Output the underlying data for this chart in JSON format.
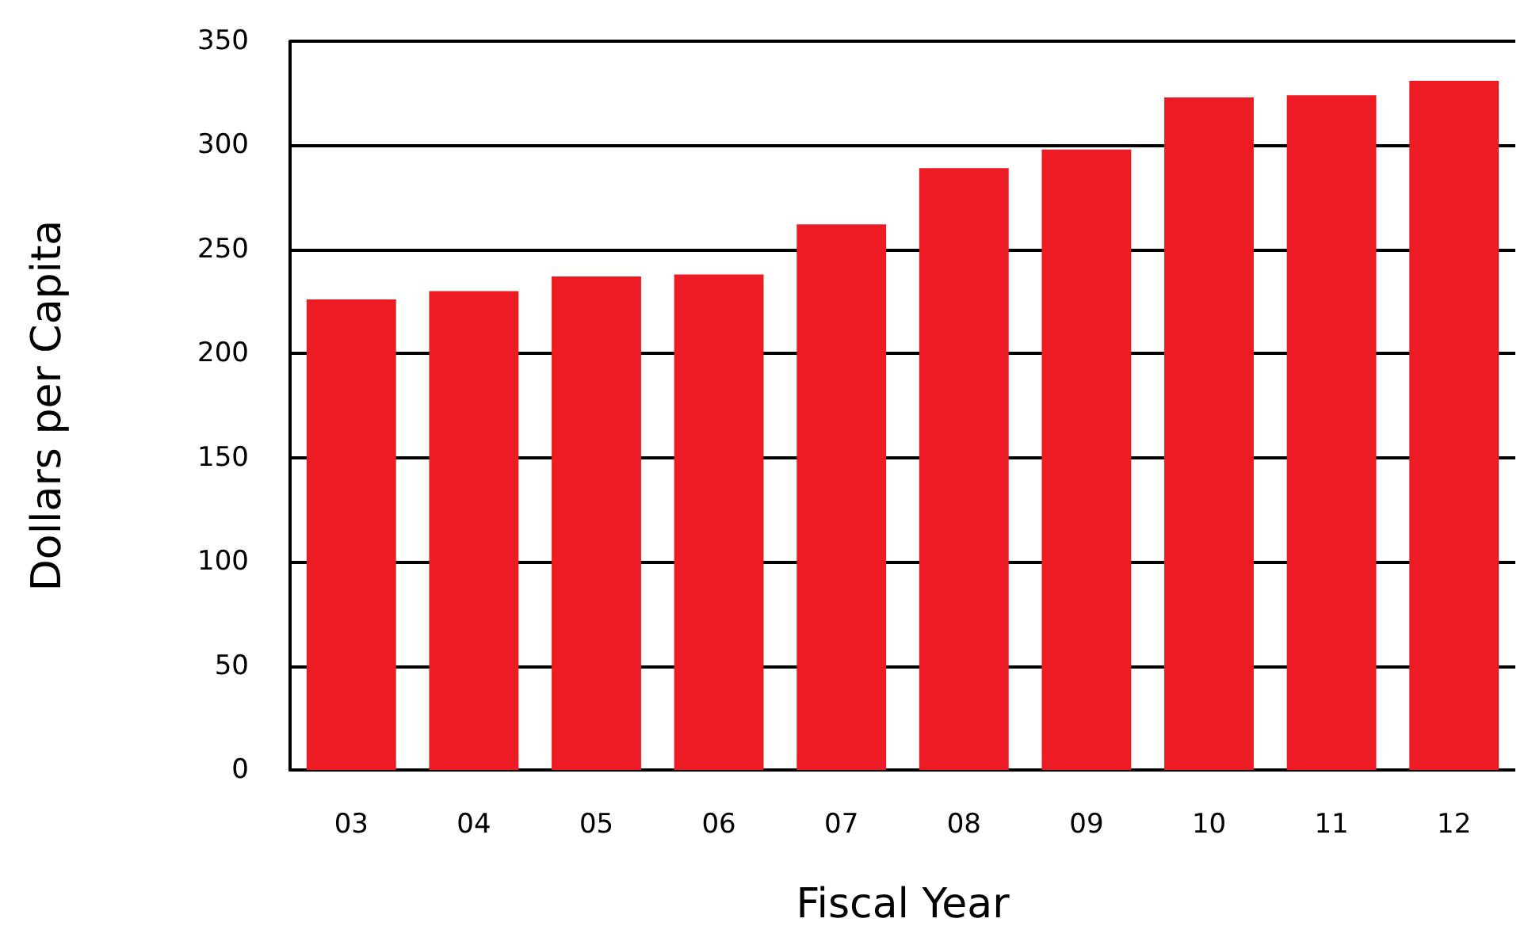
{
  "chart_data": {
    "type": "bar",
    "xlabel": "Fiscal Year",
    "ylabel": "Dollars per Capita",
    "categories": [
      "03",
      "04",
      "05",
      "06",
      "07",
      "08",
      "09",
      "10",
      "11",
      "12"
    ],
    "values": [
      226,
      230,
      237,
      238,
      262,
      289,
      298,
      323,
      324,
      331
    ],
    "color": "#ed1c24",
    "ylim": [
      0,
      350
    ],
    "yticks": [
      0,
      50,
      100,
      150,
      200,
      250,
      300,
      350
    ],
    "grid": "y"
  }
}
